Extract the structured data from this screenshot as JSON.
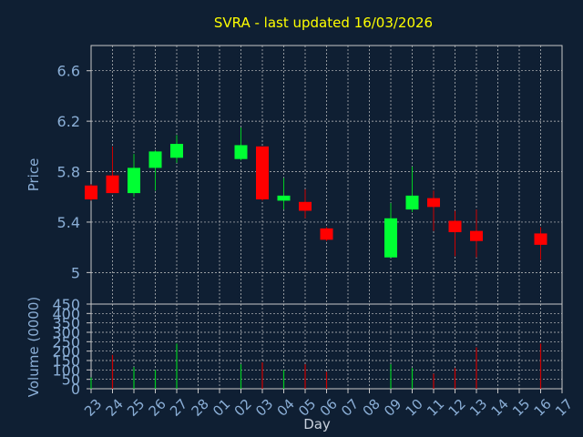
{
  "title": "SVRA - last updated 16/03/2026",
  "colors": {
    "background": "#0f1f33",
    "plot_background": "#0f1f33",
    "title": "#ffff00",
    "axis_text": "#8aaed6",
    "grid": "#c8c8c8",
    "up": "#00ff33",
    "down": "#ff0000",
    "wick_up": "#00cc22",
    "wick_down": "#cc0000"
  },
  "chart_data": [
    {
      "type": "candlestick",
      "ylabel": "Price",
      "ylim": [
        4.75,
        6.8
      ],
      "yticks": [
        5,
        5.4,
        5.8,
        6.2,
        6.6
      ],
      "ytick_labels": [
        "5",
        "5.4",
        "5.8",
        "6.2",
        "6.6"
      ],
      "grid": true,
      "categories": [
        "23",
        "24",
        "25",
        "26",
        "27",
        "28",
        "01",
        "02",
        "03",
        "04",
        "05",
        "06",
        "07",
        "08",
        "09",
        "10",
        "11",
        "12",
        "13",
        "14",
        "15",
        "16",
        "17"
      ],
      "candles": [
        {
          "x": "23",
          "open": 5.69,
          "high": 5.7,
          "low": 5.57,
          "close": 5.58
        },
        {
          "x": "24",
          "open": 5.77,
          "high": 6.0,
          "low": 5.63,
          "close": 5.63
        },
        {
          "x": "25",
          "open": 5.63,
          "high": 5.94,
          "low": 5.6,
          "close": 5.83
        },
        {
          "x": "26",
          "open": 5.83,
          "high": 5.97,
          "low": 5.65,
          "close": 5.96
        },
        {
          "x": "27",
          "open": 5.91,
          "high": 6.09,
          "low": 5.87,
          "close": 6.02
        },
        {
          "x": "02",
          "open": 5.9,
          "high": 6.15,
          "low": 5.89,
          "close": 6.01
        },
        {
          "x": "03",
          "open": 6.0,
          "high": 6.0,
          "low": 5.57,
          "close": 5.58
        },
        {
          "x": "04",
          "open": 5.57,
          "high": 5.75,
          "low": 5.5,
          "close": 5.61
        },
        {
          "x": "05",
          "open": 5.56,
          "high": 5.66,
          "low": 5.43,
          "close": 5.49
        },
        {
          "x": "06",
          "open": 5.35,
          "high": 5.36,
          "low": 5.25,
          "close": 5.26
        },
        {
          "x": "09",
          "open": 5.12,
          "high": 5.55,
          "low": 5.12,
          "close": 5.43
        },
        {
          "x": "10",
          "open": 5.5,
          "high": 5.84,
          "low": 5.48,
          "close": 5.61
        },
        {
          "x": "11",
          "open": 5.59,
          "high": 5.65,
          "low": 5.33,
          "close": 5.52
        },
        {
          "x": "12",
          "open": 5.41,
          "high": 5.49,
          "low": 5.13,
          "close": 5.32
        },
        {
          "x": "13",
          "open": 5.33,
          "high": 5.5,
          "low": 5.12,
          "close": 5.25
        },
        {
          "x": "16",
          "open": 5.31,
          "high": 5.36,
          "low": 5.1,
          "close": 5.22
        }
      ]
    },
    {
      "type": "bar",
      "ylabel": "Volume (0000)",
      "xlabel": "Day",
      "ylim": [
        0,
        450
      ],
      "yticks": [
        0,
        50,
        100,
        150,
        200,
        250,
        300,
        350,
        400,
        450
      ],
      "ytick_labels": [
        "0",
        "50",
        "100",
        "150",
        "200",
        "250",
        "300",
        "350",
        "400",
        "450"
      ],
      "grid": true,
      "categories": [
        "23",
        "24",
        "25",
        "26",
        "27",
        "28",
        "01",
        "02",
        "03",
        "04",
        "05",
        "06",
        "07",
        "08",
        "09",
        "10",
        "11",
        "12",
        "13",
        "14",
        "15",
        "16",
        "17"
      ],
      "bars": [
        {
          "x": "23",
          "value": 60,
          "dir": "up"
        },
        {
          "x": "24",
          "value": 180,
          "dir": "down"
        },
        {
          "x": "25",
          "value": 115,
          "dir": "up"
        },
        {
          "x": "26",
          "value": 100,
          "dir": "up"
        },
        {
          "x": "27",
          "value": 240,
          "dir": "up"
        },
        {
          "x": "02",
          "value": 130,
          "dir": "up"
        },
        {
          "x": "03",
          "value": 140,
          "dir": "down"
        },
        {
          "x": "04",
          "value": 100,
          "dir": "up"
        },
        {
          "x": "05",
          "value": 130,
          "dir": "down"
        },
        {
          "x": "06",
          "value": 90,
          "dir": "down"
        },
        {
          "x": "09",
          "value": 130,
          "dir": "up"
        },
        {
          "x": "10",
          "value": 110,
          "dir": "up"
        },
        {
          "x": "11",
          "value": 80,
          "dir": "down"
        },
        {
          "x": "12",
          "value": 110,
          "dir": "down"
        },
        {
          "x": "13",
          "value": 220,
          "dir": "down"
        },
        {
          "x": "16",
          "value": 240,
          "dir": "down"
        }
      ]
    }
  ]
}
